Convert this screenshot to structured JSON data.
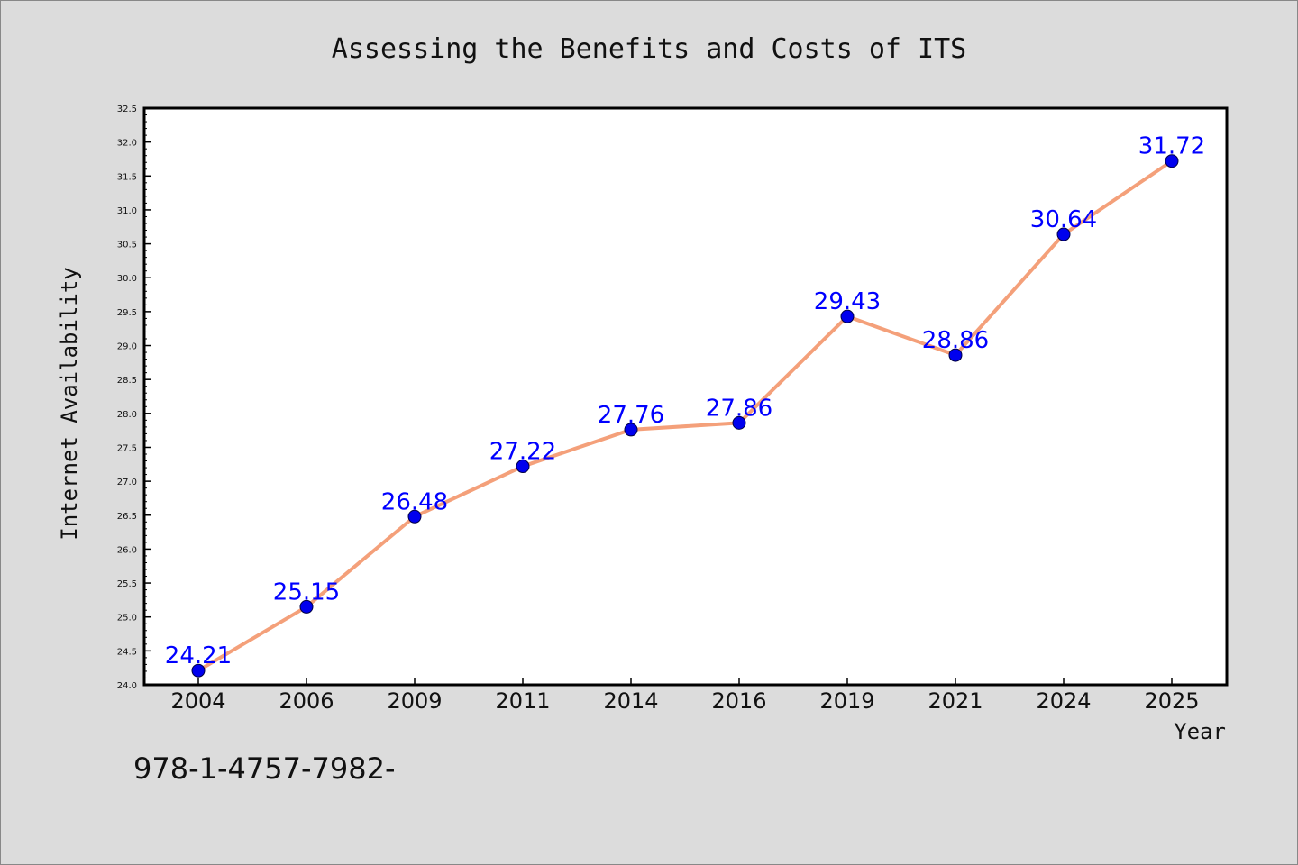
{
  "chart_data": {
    "type": "line",
    "title": "Assessing the Benefits and Costs of ITS",
    "xlabel": "Year",
    "ylabel": "Internet Availability",
    "categories": [
      "2004",
      "2006",
      "2009",
      "2011",
      "2014",
      "2016",
      "2019",
      "2021",
      "2024",
      "2025"
    ],
    "series": [
      {
        "values": [
          24.21,
          25.15,
          26.48,
          27.22,
          27.76,
          27.86,
          29.43,
          28.86,
          30.64,
          31.72
        ],
        "labels": [
          "24.21",
          "25.15",
          "26.48",
          "27.22",
          "27.76",
          "27.86",
          "29.43",
          "28.86",
          "30.64",
          "31.72"
        ],
        "line_color": "#f4a07a",
        "marker_color": "#0000ee"
      }
    ],
    "ylim": [
      24.0,
      32.5
    ],
    "yticks": [
      "24.0",
      "24.5",
      "25.0",
      "25.5",
      "26.0",
      "26.5",
      "27.0",
      "27.5",
      "28.0",
      "28.5",
      "29.0",
      "29.5",
      "30.0",
      "30.5",
      "31.0",
      "31.5",
      "32.0",
      "32.5"
    ],
    "grid": false,
    "legend": "none",
    "background_color": "#dcdcdc",
    "plot_background_color": "#ffffff",
    "label_color": "#0000ff"
  },
  "footnote": "978-1-4757-7982-"
}
